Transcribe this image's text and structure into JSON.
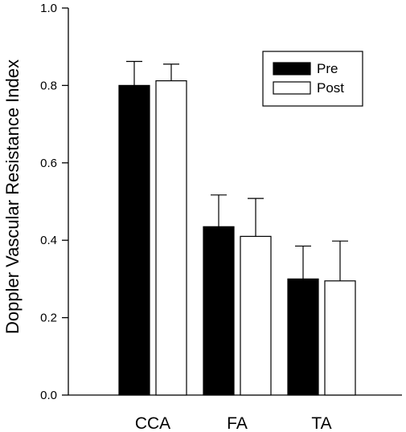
{
  "chart_data": {
    "type": "bar",
    "title": "",
    "xlabel": "",
    "ylabel": "Doppler Vascular Resistance Index",
    "ylim": [
      0,
      1.0
    ],
    "yticks": [
      "0.0",
      "0.2",
      "0.4",
      "0.6",
      "0.8",
      "1.0"
    ],
    "ytick_values": [
      0,
      0.2,
      0.4,
      0.6,
      0.8,
      1.0
    ],
    "categories": [
      "CCA",
      "FA",
      "TA"
    ],
    "series": [
      {
        "name": "Pre",
        "values": [
          0.8,
          0.435,
          0.3
        ],
        "errors": [
          0.062,
          0.082,
          0.085
        ],
        "color": "#000000"
      },
      {
        "name": "Post",
        "values": [
          0.812,
          0.41,
          0.295
        ],
        "errors": [
          0.043,
          0.098,
          0.103
        ],
        "color": "#ffffff"
      }
    ],
    "error_bars": "upper",
    "legend_position": "top-right",
    "grid": false
  }
}
